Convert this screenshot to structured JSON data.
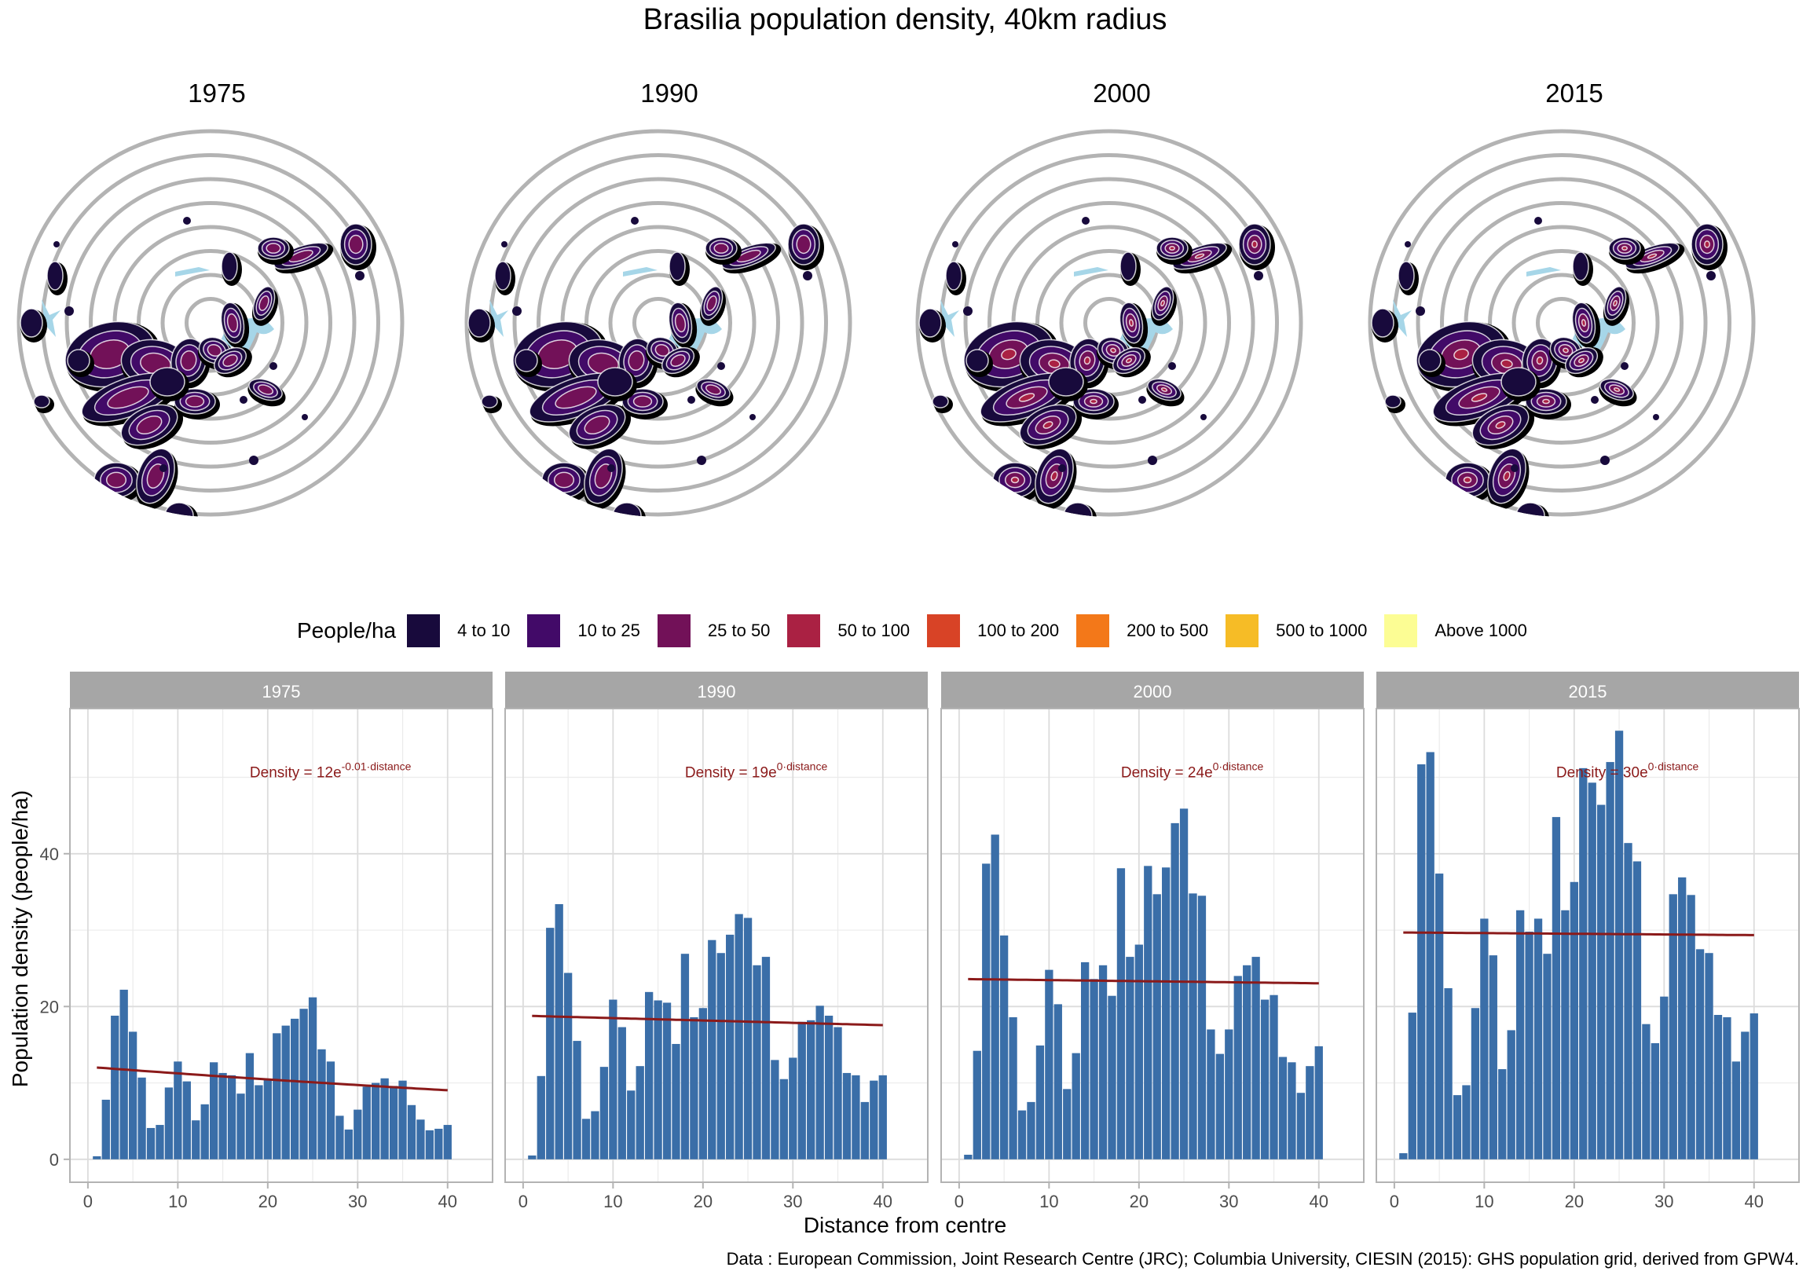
{
  "title": "Brasilia population density, 40km radius",
  "maps": [
    {
      "year": "1975",
      "max_class": 3
    },
    {
      "year": "1990",
      "max_class": 3
    },
    {
      "year": "2000",
      "max_class": 4
    },
    {
      "year": "2015",
      "max_class": 4
    }
  ],
  "legend": {
    "title": "People/ha",
    "items": [
      {
        "label": "4 to 10",
        "color": "#180a3c"
      },
      {
        "label": "10 to 25",
        "color": "#420a68"
      },
      {
        "label": "25 to 50",
        "color": "#721158"
      },
      {
        "label": "50 to 100",
        "color": "#aa2143"
      },
      {
        "label": "100 to 200",
        "color": "#d84326"
      },
      {
        "label": "200 to 500",
        "color": "#f37819"
      },
      {
        "label": "500 to 1000",
        "color": "#f6bc26"
      },
      {
        "label": "Above 1000",
        "color": "#fcfd94"
      }
    ]
  },
  "colors": {
    "bar": "#3a6ea8",
    "trend": "#8b1a1a",
    "strip": "#a6a6a6",
    "ring": "#b3b3b3",
    "water": "#a6d6e8"
  },
  "chart_data": {
    "type": "bar",
    "title": "Brasilia population density, 40km radius",
    "xlabel": "Distance from centre",
    "ylabel": "Population density (people/ha)",
    "xlim": [
      -2,
      45
    ],
    "ylim": [
      -3,
      59
    ],
    "x_ticks": [
      "0",
      "10",
      "20",
      "30",
      "40"
    ],
    "y_ticks": [
      "0",
      "20",
      "40"
    ],
    "grid": true,
    "x": [
      1,
      2,
      3,
      4,
      5,
      6,
      7,
      8,
      9,
      10,
      11,
      12,
      13,
      14,
      15,
      16,
      17,
      18,
      19,
      20,
      21,
      22,
      23,
      24,
      25,
      26,
      27,
      28,
      29,
      30,
      31,
      32,
      33,
      34,
      35,
      36,
      37,
      38,
      39,
      40
    ],
    "facets": [
      {
        "label": "1975",
        "annotation": {
          "prefix": "Density = 12e",
          "exponent": "-0.01·distance"
        },
        "trend": {
          "a": 12.1,
          "b": -0.0073
        },
        "values": [
          0.4,
          7.8,
          18.8,
          22.2,
          16.7,
          10.7,
          4.1,
          4.5,
          9.4,
          12.8,
          10.2,
          5.1,
          7.2,
          12.7,
          11.3,
          11.0,
          8.6,
          13.9,
          9.7,
          10.4,
          16.5,
          17.5,
          18.4,
          19.7,
          21.2,
          14.4,
          12.8,
          5.7,
          3.9,
          6.5,
          9.5,
          10.0,
          10.6,
          9.6,
          10.3,
          7.1,
          5.2,
          3.8,
          4.0,
          4.5
        ]
      },
      {
        "label": "1990",
        "annotation": {
          "prefix": "Density = 19e",
          "exponent": "0·distance"
        },
        "trend": {
          "a": 18.8,
          "b": -0.0017
        },
        "values": [
          0.5,
          10.9,
          30.3,
          33.4,
          24.4,
          15.5,
          5.3,
          6.3,
          12.1,
          20.9,
          17.3,
          9.0,
          12.2,
          21.9,
          20.8,
          20.5,
          15.1,
          26.9,
          18.6,
          19.8,
          28.7,
          27.0,
          29.4,
          32.1,
          31.6,
          25.4,
          26.5,
          13.0,
          10.5,
          13.3,
          18.0,
          18.2,
          20.1,
          18.8,
          17.3,
          11.3,
          11.0,
          7.5,
          10.3,
          11.0
        ]
      },
      {
        "label": "2000",
        "annotation": {
          "prefix": "Density = 24e",
          "exponent": "0·distance"
        },
        "trend": {
          "a": 23.6,
          "b": -0.0006
        },
        "values": [
          0.6,
          14.2,
          38.7,
          42.5,
          29.3,
          18.6,
          6.4,
          7.5,
          14.9,
          24.8,
          20.3,
          9.2,
          13.9,
          25.8,
          23.6,
          25.4,
          21.4,
          38.1,
          26.5,
          28.1,
          38.4,
          34.7,
          38.2,
          44.0,
          45.9,
          34.8,
          34.5,
          17.0,
          13.8,
          17.0,
          24.0,
          25.4,
          26.5,
          20.9,
          21.5,
          13.4,
          12.7,
          8.7,
          12.2,
          14.8
        ]
      },
      {
        "label": "2015",
        "annotation": {
          "prefix": "Density = 30e",
          "exponent": "0·distance"
        },
        "trend": {
          "a": 29.7,
          "b": -0.0003
        },
        "values": [
          0.8,
          19.2,
          51.7,
          53.3,
          37.4,
          22.4,
          8.4,
          9.7,
          19.8,
          31.5,
          26.7,
          11.8,
          16.9,
          32.6,
          29.8,
          31.5,
          26.9,
          44.8,
          32.6,
          36.3,
          51.2,
          49.3,
          46.4,
          52.0,
          56.1,
          41.4,
          39.0,
          17.7,
          15.2,
          21.3,
          34.7,
          36.9,
          34.6,
          27.5,
          27.0,
          18.9,
          18.6,
          12.8,
          16.7,
          19.1
        ]
      }
    ]
  },
  "caption": "Data : European Commission, Joint Research Centre (JRC); Columbia University, CIESIN (2015): GHS population grid, derived from GPW4."
}
